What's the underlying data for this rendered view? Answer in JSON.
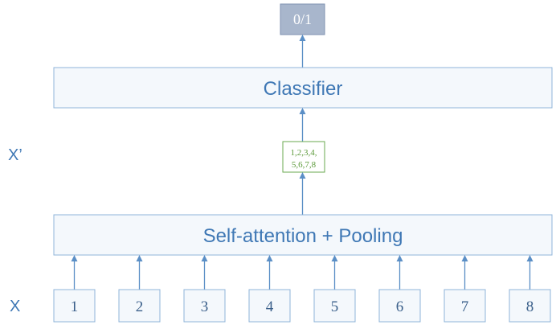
{
  "output": {
    "label": "0/1"
  },
  "classifier": {
    "label": "Classifier"
  },
  "pooling": {
    "label": "Self-attention + Pooling"
  },
  "x_prime": {
    "label": "X’",
    "vector_line1": "1,2,3,4,",
    "vector_line2": "5,6,7,8"
  },
  "x": {
    "label": "X",
    "tokens": [
      "1",
      "2",
      "3",
      "4",
      "5",
      "6",
      "7",
      "8"
    ]
  },
  "colors": {
    "box_fill": "#f4f8fc",
    "box_stroke": "#8fb4da",
    "output_fill": "#a8b6cc",
    "output_stroke": "#7f93b2",
    "vector_stroke": "#6aa84f",
    "vector_text": "#5c9a3a",
    "arrow": "#5b8fc6",
    "label_text": "#3f78b5",
    "token_text": "#3a5f8a"
  }
}
